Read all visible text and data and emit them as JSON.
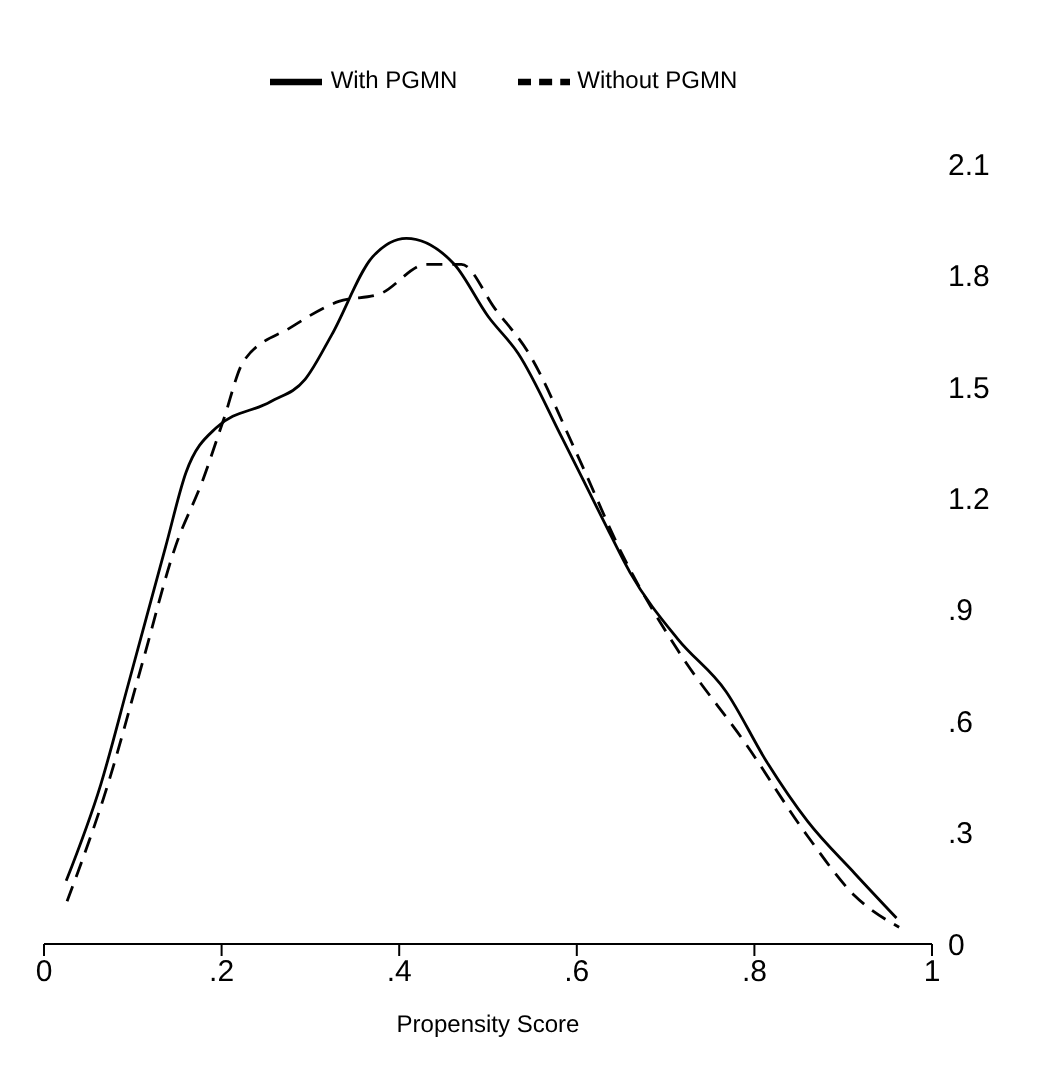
{
  "chart_data": {
    "type": "line",
    "xlabel": "Propensity Score",
    "xlim": [
      0,
      1
    ],
    "xticks": [
      0,
      {
        "value": 0.2,
        "label": ".2"
      },
      {
        "value": 0.4,
        "label": ".4"
      },
      {
        "value": 0.6,
        "label": ".6"
      },
      {
        "value": 0.8,
        "label": ".8"
      },
      1
    ],
    "ylim": [
      0,
      2.1
    ],
    "yticks": [
      0,
      {
        "value": 0.3,
        "label": ".3"
      },
      {
        "value": 0.6,
        "label": ".6"
      },
      {
        "value": 0.9,
        "label": ".9"
      },
      1.2,
      1.5,
      1.8,
      2.1
    ],
    "legend": "top",
    "series": [
      {
        "name": "With PGMN",
        "color": "#000000",
        "line_style": "solid",
        "x": [
          0.025,
          0.064,
          0.095,
          0.137,
          0.16,
          0.194,
          0.255,
          0.294,
          0.324,
          0.37,
          0.408,
          0.462,
          0.5,
          0.534,
          0.584,
          0.63,
          0.66,
          0.714,
          0.768,
          0.814,
          0.86,
          0.913,
          0.96
        ],
        "values": [
          0.17,
          0.43,
          0.7,
          1.07,
          1.27,
          1.39,
          1.46,
          1.52,
          1.64,
          1.85,
          1.9,
          1.83,
          1.69,
          1.59,
          1.36,
          1.14,
          1.0,
          0.82,
          0.68,
          0.49,
          0.33,
          0.19,
          0.07
        ]
      },
      {
        "name": "Without PGMN",
        "color": "#000000",
        "line_style": "dashed",
        "x": [
          0.026,
          0.072,
          0.11,
          0.148,
          0.179,
          0.202,
          0.225,
          0.278,
          0.332,
          0.378,
          0.431,
          0.47,
          0.508,
          0.546,
          0.6,
          0.653,
          0.714,
          0.79,
          0.86,
          0.913,
          0.963
        ],
        "values": [
          0.115,
          0.43,
          0.75,
          1.07,
          1.25,
          1.41,
          1.57,
          1.66,
          1.73,
          1.75,
          1.83,
          1.83,
          1.71,
          1.59,
          1.32,
          1.04,
          0.79,
          0.54,
          0.29,
          0.13,
          0.045
        ]
      }
    ]
  }
}
